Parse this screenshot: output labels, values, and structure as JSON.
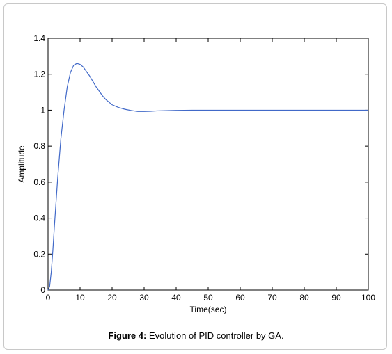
{
  "caption": {
    "label": "Figure 4:",
    "text": " Evolution of PID controller by GA."
  },
  "chart_data": {
    "type": "line",
    "title": "",
    "xlabel": "Time(sec)",
    "ylabel": "Amplitude",
    "xlim": [
      0,
      100
    ],
    "ylim": [
      0,
      1.4
    ],
    "xticks": [
      0,
      10,
      20,
      30,
      40,
      50,
      60,
      70,
      80,
      90,
      100
    ],
    "yticks": [
      0,
      0.2,
      0.4,
      0.6,
      0.8,
      1,
      1.2,
      1.4
    ],
    "grid": false,
    "series_color": "#4169c8",
    "series": [
      {
        "x": [
          0,
          0.5,
          1,
          1.5,
          2,
          3,
          4,
          5,
          6,
          7,
          8,
          9,
          10,
          11,
          12,
          13,
          14,
          15,
          16,
          17,
          18,
          19,
          20,
          22,
          24,
          26,
          28,
          30,
          32,
          34,
          36,
          38,
          40,
          45,
          50,
          60,
          70,
          80,
          90,
          100
        ],
        "y": [
          0,
          0.02,
          0.1,
          0.22,
          0.36,
          0.62,
          0.84,
          1.0,
          1.13,
          1.21,
          1.25,
          1.26,
          1.255,
          1.24,
          1.215,
          1.19,
          1.16,
          1.13,
          1.105,
          1.08,
          1.06,
          1.045,
          1.03,
          1.015,
          1.005,
          0.998,
          0.993,
          0.993,
          0.994,
          0.996,
          0.997,
          0.998,
          0.999,
          1.0,
          1.0,
          1.0,
          1.0,
          1.0,
          1.0,
          1.0
        ]
      }
    ]
  }
}
